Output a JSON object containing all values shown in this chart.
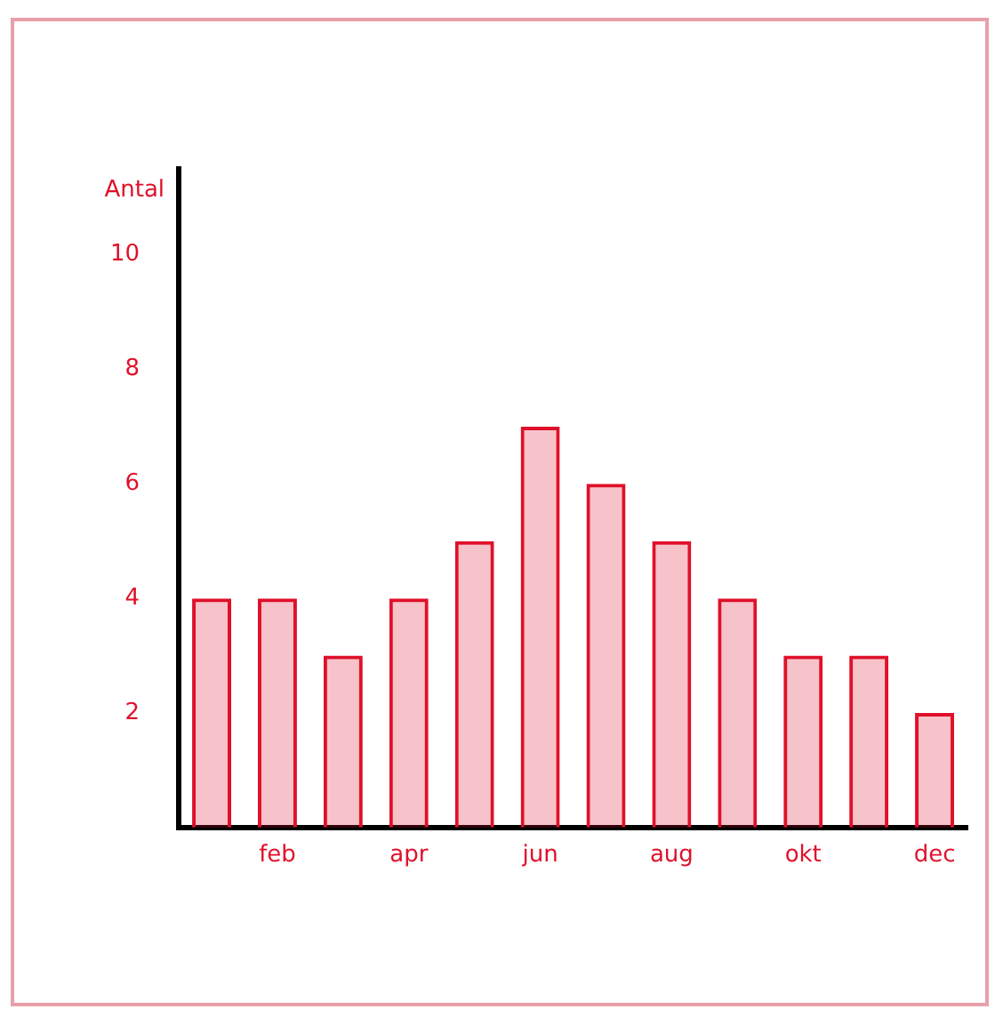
{
  "chart_data": {
    "type": "bar",
    "ylabel": "Antal",
    "categories": [
      null,
      "feb",
      null,
      "apr",
      null,
      "jun",
      null,
      "aug",
      null,
      "okt",
      null,
      "dec"
    ],
    "values": [
      4,
      4,
      3,
      4,
      5,
      7,
      6,
      5,
      4,
      3,
      3,
      2
    ],
    "color": "#e0102a",
    "ylim": [
      0,
      11.5
    ],
    "yticks": [
      2,
      4,
      6,
      8,
      10
    ],
    "grid": false,
    "legend": false
  }
}
